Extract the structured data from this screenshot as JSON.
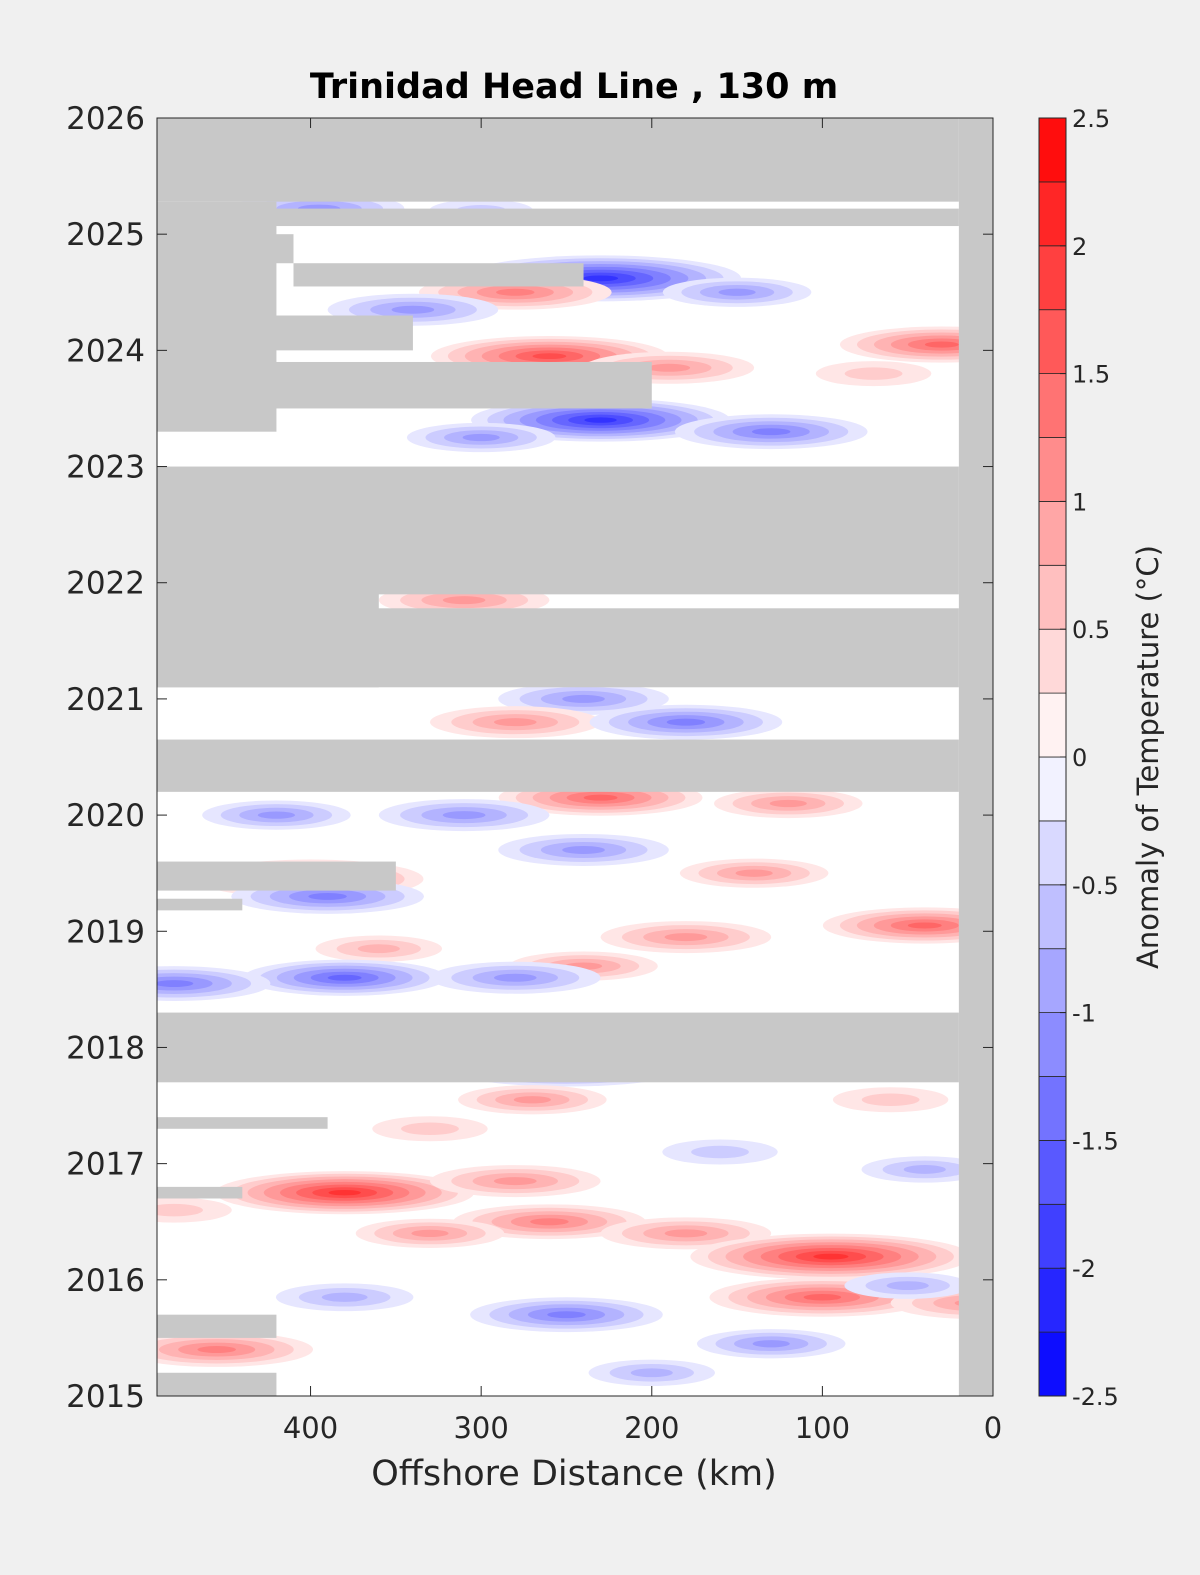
{
  "chart_data": {
    "type": "heatmap",
    "title": "Trinidad Head Line , 130 m",
    "xlabel": "Offshore Distance (km)",
    "ylabel": "",
    "colorbar_label": "Anomaly of Temperature (°C)",
    "x_reversed": true,
    "xlim": [
      0,
      490
    ],
    "ylim": [
      2015,
      2026
    ],
    "xticks": [
      400,
      300,
      200,
      100,
      0
    ],
    "yticks": [
      2015,
      2016,
      2017,
      2018,
      2019,
      2020,
      2021,
      2022,
      2023,
      2024,
      2025,
      2026
    ],
    "colorbar_ticks": [
      -2.5,
      -2,
      -1.5,
      -1,
      -0.5,
      0,
      0.5,
      1,
      1.5,
      2,
      2.5
    ],
    "colorbar_tick_labels": [
      "-2.5",
      "-2",
      "-1.5",
      "-1",
      "-0.5",
      "0",
      "0.5",
      "1",
      "1.5",
      "2",
      "2.5"
    ],
    "colorbar_levels": [
      -2.5,
      -2.25,
      -2,
      -1.75,
      -1.5,
      -1.25,
      -1,
      -0.75,
      -0.5,
      -0.25,
      0,
      0.25,
      0.5,
      0.75,
      1,
      1.25,
      1.5,
      1.75,
      2,
      2.25,
      2.5
    ],
    "colors": {
      "no_data": "#c8c8c8",
      "neg_max": "#0000ff",
      "pos_max": "#ff0000",
      "zero": "#ffffff",
      "background": "#f0f0f0"
    },
    "no_data_regions": [
      {
        "x": [
          20,
          490
        ],
        "y": [
          2025.28,
          2026
        ]
      },
      {
        "x": [
          0,
          20
        ],
        "y": [
          2015,
          2026
        ]
      },
      {
        "x": [
          420,
          490
        ],
        "y": [
          2023.3,
          2025.28
        ]
      },
      {
        "x": [
          20,
          490
        ],
        "y": [
          2025.07,
          2025.22
        ]
      },
      {
        "x": [
          410,
          490
        ],
        "y": [
          2024.75,
          2025.0
        ]
      },
      {
        "x": [
          240,
          410
        ],
        "y": [
          2024.55,
          2024.75
        ]
      },
      {
        "x": [
          430,
          490
        ],
        "y": [
          2024.3,
          2024.6
        ]
      },
      {
        "x": [
          340,
          490
        ],
        "y": [
          2024.0,
          2024.3
        ]
      },
      {
        "x": [
          200,
          490
        ],
        "y": [
          2023.5,
          2023.9
        ]
      },
      {
        "x": [
          20,
          490
        ],
        "y": [
          2021.9,
          2023.0
        ]
      },
      {
        "x": [
          360,
          490
        ],
        "y": [
          2021.1,
          2021.95
        ]
      },
      {
        "x": [
          20,
          490
        ],
        "y": [
          2021.1,
          2021.78
        ]
      },
      {
        "x": [
          20,
          490
        ],
        "y": [
          2020.2,
          2020.65
        ]
      },
      {
        "x": [
          350,
          490
        ],
        "y": [
          2019.35,
          2019.6
        ]
      },
      {
        "x": [
          440,
          490
        ],
        "y": [
          2019.18,
          2019.28
        ]
      },
      {
        "x": [
          20,
          490
        ],
        "y": [
          2017.7,
          2018.3
        ]
      },
      {
        "x": [
          390,
          490
        ],
        "y": [
          2017.3,
          2017.4
        ]
      },
      {
        "x": [
          440,
          490
        ],
        "y": [
          2016.7,
          2016.8
        ]
      },
      {
        "x": [
          420,
          490
        ],
        "y": [
          2015.5,
          2015.7
        ]
      },
      {
        "x": [
          420,
          490
        ],
        "y": [
          2015.0,
          2015.2
        ]
      }
    ],
    "anomaly_features": [
      {
        "x": 395,
        "y": 2025.22,
        "value": -1.0
      },
      {
        "x": 300,
        "y": 2025.2,
        "value": -0.4
      },
      {
        "x": 230,
        "y": 2024.62,
        "value": -2.0
      },
      {
        "x": 280,
        "y": 2024.5,
        "value": 1.2
      },
      {
        "x": 340,
        "y": 2024.35,
        "value": -1.0
      },
      {
        "x": 150,
        "y": 2024.5,
        "value": -0.8
      },
      {
        "x": 30,
        "y": 2024.05,
        "value": 1.3
      },
      {
        "x": 260,
        "y": 2023.95,
        "value": 1.6
      },
      {
        "x": 190,
        "y": 2023.85,
        "value": 1.0
      },
      {
        "x": 230,
        "y": 2023.4,
        "value": -1.8
      },
      {
        "x": 130,
        "y": 2023.3,
        "value": -1.2
      },
      {
        "x": 300,
        "y": 2023.25,
        "value": -0.8
      },
      {
        "x": 70,
        "y": 2023.8,
        "value": 0.5
      },
      {
        "x": 310,
        "y": 2021.85,
        "value": 1.0
      },
      {
        "x": 240,
        "y": 2021.0,
        "value": -1.0
      },
      {
        "x": 280,
        "y": 2020.8,
        "value": 1.0
      },
      {
        "x": 180,
        "y": 2020.8,
        "value": -1.2
      },
      {
        "x": 230,
        "y": 2020.15,
        "value": 1.3
      },
      {
        "x": 120,
        "y": 2020.1,
        "value": 0.8
      },
      {
        "x": 420,
        "y": 2020.0,
        "value": -0.8
      },
      {
        "x": 310,
        "y": 2020.0,
        "value": -1.0
      },
      {
        "x": 240,
        "y": 2019.7,
        "value": -1.0
      },
      {
        "x": 400,
        "y": 2019.45,
        "value": 1.5
      },
      {
        "x": 390,
        "y": 2019.3,
        "value": -1.2
      },
      {
        "x": 140,
        "y": 2019.5,
        "value": 0.8
      },
      {
        "x": 40,
        "y": 2019.05,
        "value": 1.3
      },
      {
        "x": 180,
        "y": 2018.95,
        "value": 1.0
      },
      {
        "x": 240,
        "y": 2018.7,
        "value": 0.8
      },
      {
        "x": 360,
        "y": 2018.85,
        "value": 0.6
      },
      {
        "x": 380,
        "y": 2018.6,
        "value": -1.3
      },
      {
        "x": 280,
        "y": 2018.6,
        "value": -1.0
      },
      {
        "x": 480,
        "y": 2018.55,
        "value": -1.2
      },
      {
        "x": 250,
        "y": 2017.85,
        "value": -1.8
      },
      {
        "x": 270,
        "y": 2017.55,
        "value": 0.8
      },
      {
        "x": 60,
        "y": 2017.55,
        "value": 0.5
      },
      {
        "x": 380,
        "y": 2016.75,
        "value": 1.8
      },
      {
        "x": 280,
        "y": 2016.85,
        "value": 1.0
      },
      {
        "x": 260,
        "y": 2016.5,
        "value": 1.2
      },
      {
        "x": 180,
        "y": 2016.4,
        "value": 1.0
      },
      {
        "x": 95,
        "y": 2016.2,
        "value": 2.0
      },
      {
        "x": 100,
        "y": 2015.85,
        "value": 1.5
      },
      {
        "x": 250,
        "y": 2015.7,
        "value": -1.2
      },
      {
        "x": 130,
        "y": 2015.45,
        "value": -0.8
      },
      {
        "x": 330,
        "y": 2016.4,
        "value": 0.8
      },
      {
        "x": 455,
        "y": 2015.4,
        "value": 1.2
      },
      {
        "x": 380,
        "y": 2015.85,
        "value": -0.7
      },
      {
        "x": 10,
        "y": 2015.8,
        "value": 1.0
      },
      {
        "x": 50,
        "y": 2015.95,
        "value": -0.6
      },
      {
        "x": 480,
        "y": 2016.6,
        "value": 0.5
      },
      {
        "x": 160,
        "y": 2017.1,
        "value": -0.5
      },
      {
        "x": 40,
        "y": 2016.95,
        "value": -0.6
      },
      {
        "x": 330,
        "y": 2017.3,
        "value": 0.5
      },
      {
        "x": 200,
        "y": 2015.2,
        "value": -0.6
      }
    ]
  }
}
